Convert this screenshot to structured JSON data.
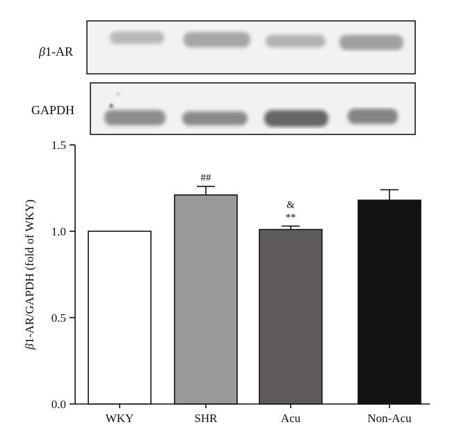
{
  "blot": {
    "row1_label_prefix": "β",
    "row1_label_suffix": "1-AR",
    "row2_label": "GAPDH"
  },
  "chart_data": {
    "type": "bar",
    "categories": [
      "WKY",
      "SHR",
      "Acu",
      "Non-Acu"
    ],
    "values": [
      1.0,
      1.21,
      1.01,
      1.18
    ],
    "errors": [
      0.0,
      0.05,
      0.02,
      0.06
    ],
    "bar_colors": [
      "#ffffff",
      "#9a9899",
      "#5f5a5b",
      "#141414"
    ],
    "annotations": [
      {
        "category": "SHR",
        "lines": [
          "##"
        ]
      },
      {
        "category": "Acu",
        "lines": [
          "&",
          "**"
        ]
      }
    ],
    "ylabel_prefix": "β",
    "ylabel_suffix": "1-AR/GAPDH (fold of WKY)",
    "ylim": [
      0.0,
      1.5
    ],
    "yticks": [
      "0.0",
      "0.5",
      "1.0",
      "1.5"
    ],
    "grid": false
  }
}
